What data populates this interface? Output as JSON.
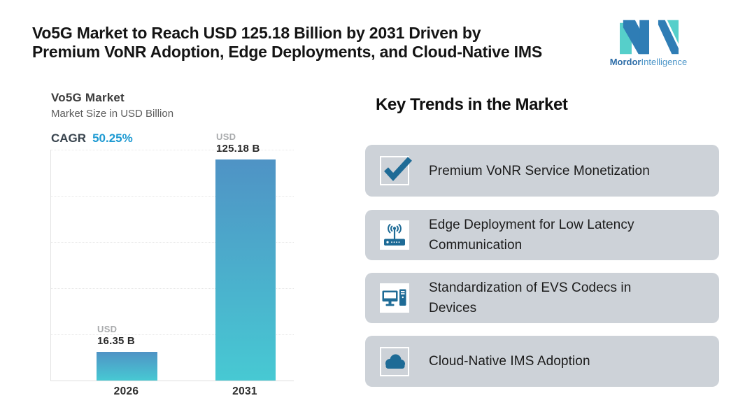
{
  "header": {
    "title_line1": "Vo5G Market to Reach USD 125.18 Billion by 2031 Driven by",
    "title_line2": "Premium VoNR Adoption, Edge Deployments, and Cloud-Native IMS",
    "logo": {
      "brand_bold": "Mordor",
      "brand_regular": "Intelligence",
      "mark_icon": "mordor-m-logo-icon",
      "teal": "#56cfca",
      "blue": "#2f7db5",
      "text_color": "#3e8ac2"
    }
  },
  "chart": {
    "title": "Vo5G Market",
    "subtitle": "Market Size in USD Billion",
    "cagr_label": "CAGR",
    "cagr_value": "50.25%",
    "cagr_color": "#1e9ad2",
    "bar_top_color": "#4f93c5",
    "bar_bottom_color": "#47c9d3",
    "gridline_style": "dotted"
  },
  "chart_data": {
    "type": "bar",
    "title": "Vo5G Market",
    "subtitle": "Market Size in USD Billion",
    "unit": "USD Billion",
    "cagr_percent": 50.25,
    "categories": [
      "2026",
      "2031"
    ],
    "values": [
      16.35,
      125.18
    ],
    "bar_labels": [
      {
        "prefix": "USD",
        "value": "16.35 B"
      },
      {
        "prefix": "USD",
        "value": "125.18 B"
      }
    ],
    "ylim": [
      0,
      131
    ],
    "grid": "horizontal-dotted",
    "legend": "none",
    "xlabel": "",
    "ylabel": ""
  },
  "trends": {
    "heading": "Key Trends in the Market",
    "card_bg": "#cdd2d8",
    "icon_color": "#1e6b96",
    "items": [
      {
        "label": "Premium VoNR Service Monetization",
        "icon": "checkmark-icon"
      },
      {
        "label": "Edge Deployment for Low Latency Communication",
        "icon": "router-antenna-icon"
      },
      {
        "label": "Standardization of EVS Codecs in Devices",
        "icon": "desktop-computer-icon"
      },
      {
        "label": "Cloud-Native IMS Adoption",
        "icon": "cloud-icon"
      }
    ]
  }
}
